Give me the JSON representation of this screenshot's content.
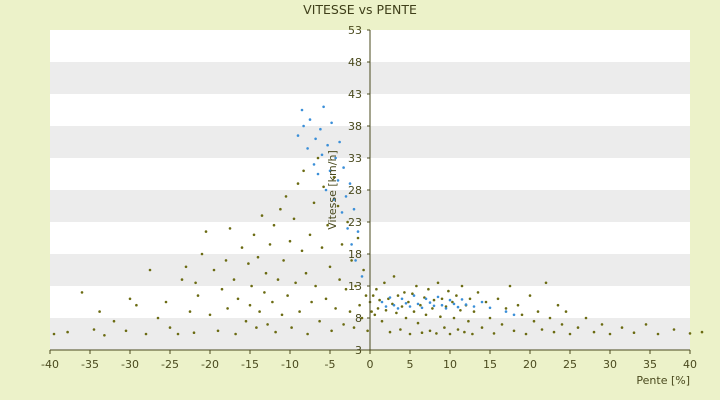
{
  "chart_data": {
    "type": "scatter",
    "title": "VITESSE vs PENTE",
    "xlabel": "Pente [%]",
    "ylabel": "Vitesse [km/h]",
    "xlim": [
      -40,
      40
    ],
    "ylim": [
      3,
      53
    ],
    "x_ticks": [
      "-40",
      "-35",
      "-30",
      "-25",
      "-20",
      "-15",
      "-10",
      "-5",
      "0",
      "5",
      "10",
      "15",
      "20",
      "25",
      "30",
      "35",
      "40"
    ],
    "y_ticks": [
      "3",
      "8",
      "13",
      "18",
      "23",
      "28",
      "33",
      "38",
      "43",
      "48",
      "53"
    ],
    "grid": "horizontal bands",
    "colors": {
      "background": "#ecf2c9",
      "plot_band_light": "#ffffff",
      "plot_band_dark": "#ececec",
      "series_olive": "#6b6b12",
      "series_blue": "#3b8fd8",
      "axis": "#4a4a1e"
    },
    "series": [
      {
        "color_key": "series_olive",
        "points": [
          [
            -39.5,
            5.5
          ],
          [
            -37.8,
            5.8
          ],
          [
            -36.0,
            12.0
          ],
          [
            -34.5,
            6.2
          ],
          [
            -33.8,
            9.0
          ],
          [
            -33.2,
            5.3
          ],
          [
            -32.0,
            7.5
          ],
          [
            -30.5,
            6.0
          ],
          [
            -30.0,
            11.0
          ],
          [
            -29.2,
            10.0
          ],
          [
            -28.0,
            5.5
          ],
          [
            -27.5,
            15.5
          ],
          [
            -26.5,
            8.0
          ],
          [
            -25.5,
            10.5
          ],
          [
            -25.0,
            6.5
          ],
          [
            -24.0,
            5.5
          ],
          [
            -23.5,
            14.0
          ],
          [
            -23.0,
            16.0
          ],
          [
            -22.5,
            9.0
          ],
          [
            -22.0,
            5.7
          ],
          [
            -21.8,
            13.5
          ],
          [
            -21.5,
            11.5
          ],
          [
            -21.0,
            18.0
          ],
          [
            -20.5,
            21.5
          ],
          [
            -20.0,
            8.5
          ],
          [
            -19.5,
            15.5
          ],
          [
            -19.0,
            6.0
          ],
          [
            -18.5,
            12.5
          ],
          [
            -18.0,
            17.0
          ],
          [
            -17.8,
            9.5
          ],
          [
            -17.5,
            22.0
          ],
          [
            -17.0,
            14.0
          ],
          [
            -16.8,
            5.5
          ],
          [
            -16.5,
            11.0
          ],
          [
            -16.0,
            19.0
          ],
          [
            -15.5,
            7.5
          ],
          [
            -15.2,
            16.5
          ],
          [
            -15.0,
            10.0
          ],
          [
            -14.8,
            13.0
          ],
          [
            -14.5,
            21.0
          ],
          [
            -14.2,
            6.5
          ],
          [
            -14.0,
            17.5
          ],
          [
            -13.8,
            9.0
          ],
          [
            -13.5,
            24.0
          ],
          [
            -13.2,
            12.0
          ],
          [
            -13.0,
            15.0
          ],
          [
            -12.8,
            7.0
          ],
          [
            -12.5,
            19.5
          ],
          [
            -12.2,
            10.5
          ],
          [
            -12.0,
            22.5
          ],
          [
            -11.8,
            5.8
          ],
          [
            -11.5,
            14.0
          ],
          [
            -11.2,
            25.0
          ],
          [
            -11.0,
            8.5
          ],
          [
            -10.8,
            17.0
          ],
          [
            -10.5,
            27.0
          ],
          [
            -10.3,
            11.5
          ],
          [
            -10.0,
            20.0
          ],
          [
            -9.8,
            6.5
          ],
          [
            -9.5,
            23.5
          ],
          [
            -9.3,
            13.5
          ],
          [
            -9.0,
            29.0
          ],
          [
            -8.8,
            9.0
          ],
          [
            -8.5,
            18.5
          ],
          [
            -8.3,
            31.0
          ],
          [
            -8.0,
            15.0
          ],
          [
            -7.8,
            5.5
          ],
          [
            -7.5,
            21.0
          ],
          [
            -7.3,
            10.5
          ],
          [
            -7.0,
            26.0
          ],
          [
            -6.8,
            13.0
          ],
          [
            -6.5,
            33.0
          ],
          [
            -6.3,
            7.5
          ],
          [
            -6.0,
            19.0
          ],
          [
            -5.8,
            28.5
          ],
          [
            -5.5,
            11.0
          ],
          [
            -5.3,
            22.5
          ],
          [
            -5.0,
            16.0
          ],
          [
            -4.8,
            6.0
          ],
          [
            -4.5,
            30.0
          ],
          [
            -4.3,
            9.5
          ],
          [
            -4.0,
            25.5
          ],
          [
            -3.8,
            14.0
          ],
          [
            -3.5,
            19.5
          ],
          [
            -3.3,
            7.0
          ],
          [
            -3.0,
            12.5
          ],
          [
            -2.8,
            23.0
          ],
          [
            -2.5,
            9.0
          ],
          [
            -2.3,
            17.0
          ],
          [
            -2.0,
            6.5
          ],
          [
            -1.8,
            13.0
          ],
          [
            -1.5,
            20.5
          ],
          [
            -1.3,
            10.0
          ],
          [
            -1.0,
            8.0
          ],
          [
            -0.8,
            15.5
          ],
          [
            -0.5,
            11.5
          ],
          [
            -0.3,
            6.0
          ],
          [
            0.0,
            10.5
          ],
          [
            0.2,
            9.0
          ],
          [
            0.4,
            11.5
          ],
          [
            0.6,
            8.5
          ],
          [
            0.8,
            12.5
          ],
          [
            1.0,
            9.5
          ],
          [
            1.2,
            10.8
          ],
          [
            1.5,
            7.5
          ],
          [
            1.8,
            13.5
          ],
          [
            2.0,
            9.2
          ],
          [
            2.3,
            11.0
          ],
          [
            2.5,
            5.8
          ],
          [
            2.8,
            10.2
          ],
          [
            3.0,
            14.5
          ],
          [
            3.3,
            8.8
          ],
          [
            3.5,
            11.5
          ],
          [
            3.8,
            6.2
          ],
          [
            4.0,
            9.8
          ],
          [
            4.3,
            12.0
          ],
          [
            4.5,
            8.0
          ],
          [
            4.8,
            10.5
          ],
          [
            5.0,
            5.5
          ],
          [
            5.3,
            11.8
          ],
          [
            5.5,
            9.0
          ],
          [
            5.8,
            13.0
          ],
          [
            6.0,
            7.2
          ],
          [
            6.3,
            10.0
          ],
          [
            6.5,
            5.7
          ],
          [
            6.8,
            11.2
          ],
          [
            7.0,
            8.5
          ],
          [
            7.3,
            12.5
          ],
          [
            7.5,
            6.0
          ],
          [
            7.8,
            9.5
          ],
          [
            8.0,
            10.8
          ],
          [
            8.3,
            5.6
          ],
          [
            8.5,
            13.5
          ],
          [
            8.8,
            8.2
          ],
          [
            9.0,
            11.0
          ],
          [
            9.3,
            6.5
          ],
          [
            9.5,
            9.8
          ],
          [
            9.8,
            12.2
          ],
          [
            10.0,
            5.5
          ],
          [
            10.3,
            10.5
          ],
          [
            10.5,
            8.0
          ],
          [
            10.8,
            11.5
          ],
          [
            11.0,
            6.2
          ],
          [
            11.3,
            9.2
          ],
          [
            11.5,
            13.0
          ],
          [
            11.8,
            5.8
          ],
          [
            12.0,
            10.0
          ],
          [
            12.3,
            7.5
          ],
          [
            12.5,
            11.0
          ],
          [
            12.8,
            5.5
          ],
          [
            13.0,
            9.0
          ],
          [
            13.5,
            12.0
          ],
          [
            14.0,
            6.5
          ],
          [
            14.5,
            10.5
          ],
          [
            15.0,
            8.0
          ],
          [
            15.5,
            5.6
          ],
          [
            16.0,
            11.0
          ],
          [
            16.5,
            7.0
          ],
          [
            17.0,
            9.5
          ],
          [
            17.5,
            13.0
          ],
          [
            18.0,
            6.0
          ],
          [
            18.5,
            10.0
          ],
          [
            19.0,
            8.5
          ],
          [
            19.5,
            5.5
          ],
          [
            20.0,
            11.5
          ],
          [
            20.5,
            7.5
          ],
          [
            21.0,
            9.0
          ],
          [
            21.5,
            6.2
          ],
          [
            22.0,
            13.5
          ],
          [
            22.5,
            8.0
          ],
          [
            23.0,
            5.8
          ],
          [
            23.5,
            10.0
          ],
          [
            24.0,
            7.0
          ],
          [
            24.5,
            9.0
          ],
          [
            25.0,
            5.5
          ],
          [
            26.0,
            6.5
          ],
          [
            27.0,
            8.0
          ],
          [
            28.0,
            5.8
          ],
          [
            29.0,
            7.0
          ],
          [
            30.0,
            5.5
          ],
          [
            31.5,
            6.5
          ],
          [
            33.0,
            5.7
          ],
          [
            34.5,
            7.0
          ],
          [
            36.0,
            5.5
          ],
          [
            38.0,
            6.2
          ],
          [
            40.0,
            5.6
          ],
          [
            41.5,
            5.8
          ]
        ]
      },
      {
        "color_key": "series_blue",
        "points": [
          [
            -9.0,
            36.5
          ],
          [
            -8.5,
            40.5
          ],
          [
            -8.3,
            38.0
          ],
          [
            -7.8,
            34.5
          ],
          [
            -7.5,
            39.0
          ],
          [
            -7.0,
            32.0
          ],
          [
            -6.8,
            36.0
          ],
          [
            -6.5,
            30.5
          ],
          [
            -6.2,
            37.5
          ],
          [
            -6.0,
            33.5
          ],
          [
            -5.8,
            41.0
          ],
          [
            -5.5,
            28.0
          ],
          [
            -5.3,
            35.0
          ],
          [
            -5.0,
            31.0
          ],
          [
            -4.8,
            38.5
          ],
          [
            -4.5,
            26.5
          ],
          [
            -4.3,
            33.0
          ],
          [
            -4.0,
            29.5
          ],
          [
            -3.8,
            35.5
          ],
          [
            -3.5,
            24.5
          ],
          [
            -3.3,
            31.5
          ],
          [
            -3.0,
            27.0
          ],
          [
            -2.8,
            22.0
          ],
          [
            -2.5,
            29.0
          ],
          [
            -2.3,
            19.5
          ],
          [
            -2.0,
            25.0
          ],
          [
            -1.8,
            17.0
          ],
          [
            -1.5,
            21.5
          ],
          [
            -1.0,
            14.5
          ],
          [
            1.5,
            10.5
          ],
          [
            2.0,
            9.8
          ],
          [
            2.5,
            11.2
          ],
          [
            3.0,
            10.0
          ],
          [
            3.5,
            9.5
          ],
          [
            4.0,
            11.0
          ],
          [
            4.5,
            10.3
          ],
          [
            5.0,
            9.8
          ],
          [
            5.5,
            11.5
          ],
          [
            6.0,
            10.2
          ],
          [
            6.5,
            9.6
          ],
          [
            7.0,
            11.0
          ],
          [
            7.5,
            10.4
          ],
          [
            8.0,
            9.9
          ],
          [
            8.5,
            11.3
          ],
          [
            9.0,
            10.0
          ],
          [
            9.5,
            9.5
          ],
          [
            10.0,
            10.8
          ],
          [
            10.5,
            10.2
          ],
          [
            11.0,
            9.7
          ],
          [
            11.5,
            10.9
          ],
          [
            12.0,
            10.1
          ],
          [
            13.0,
            9.8
          ],
          [
            14.0,
            10.5
          ],
          [
            15.0,
            9.6
          ],
          [
            17.0,
            9.0
          ],
          [
            18.0,
            8.5
          ]
        ]
      }
    ]
  }
}
